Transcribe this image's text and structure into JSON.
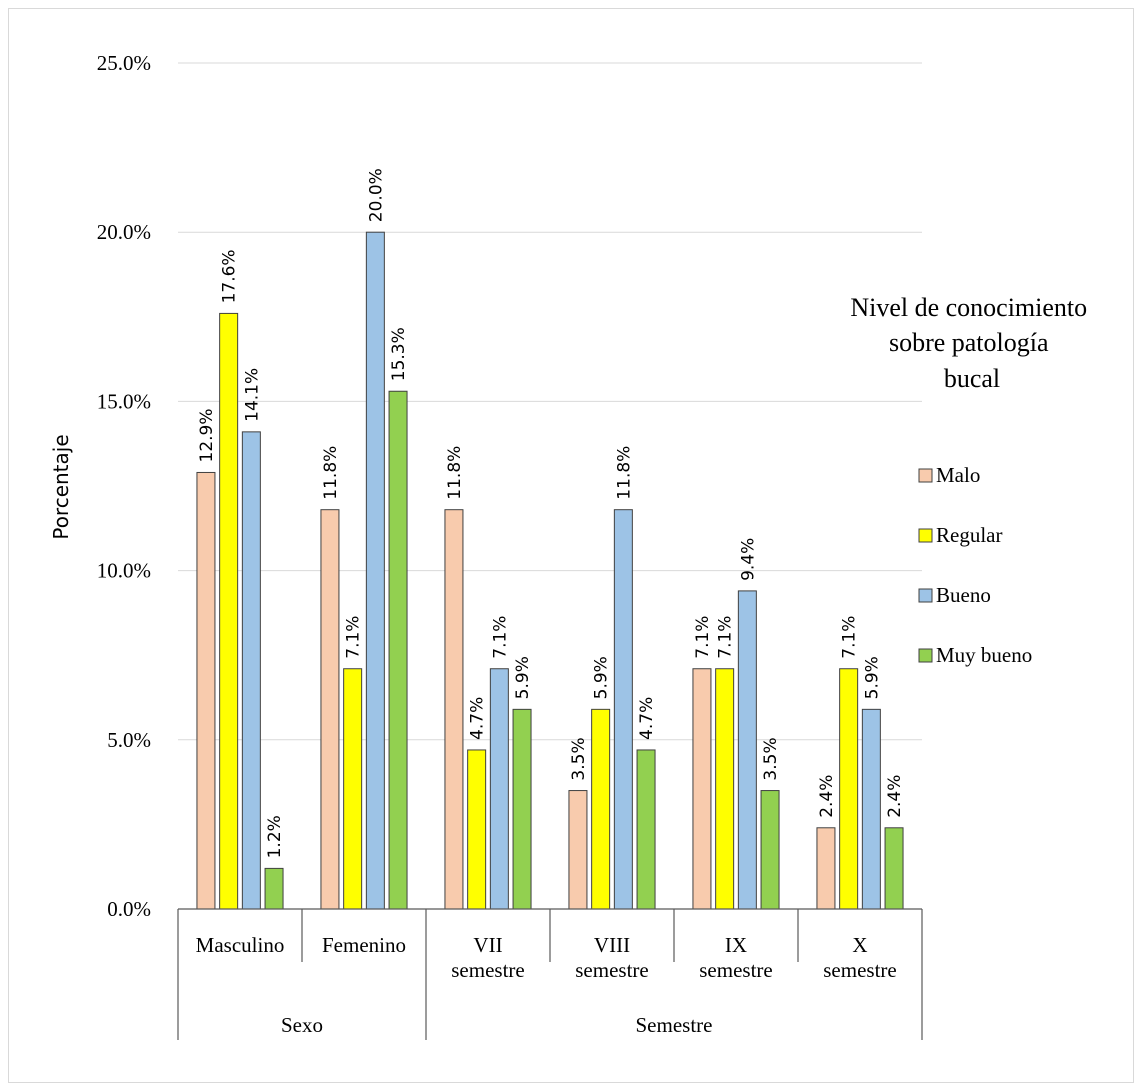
{
  "chart_data": {
    "type": "bar",
    "ylabel": "Porcentaje",
    "ylim": [
      0,
      25
    ],
    "yticks": [
      "0.0%",
      "5.0%",
      "10.0%",
      "15.0%",
      "20.0%",
      "25.0%"
    ],
    "yticks_values": [
      0,
      5,
      10,
      15,
      20,
      25
    ],
    "grid": true,
    "categories": [
      "Masculino",
      "Femenino",
      "VII semestre",
      "VIII semestre",
      "IX semestre",
      "X semestre"
    ],
    "category_lines": [
      [
        "Masculino"
      ],
      [
        "Femenino"
      ],
      [
        "VII",
        "semestre"
      ],
      [
        "VIII",
        "semestre"
      ],
      [
        "IX",
        "semestre"
      ],
      [
        "X",
        "semestre"
      ]
    ],
    "groups": [
      {
        "label": "Sexo",
        "span": [
          0,
          1
        ]
      },
      {
        "label": "Semestre",
        "span": [
          2,
          5
        ]
      }
    ],
    "legend_title_lines": [
      "Nivel de conocimiento",
      "sobre patología",
      "bucal"
    ],
    "legend_position": "right",
    "series": [
      {
        "name": "Malo",
        "color": "#F8CBAD",
        "values": [
          12.9,
          11.8,
          11.8,
          3.5,
          7.1,
          2.4
        ],
        "labels": [
          "12.9%",
          "11.8%",
          "11.8%",
          "3.5%",
          "7.1%",
          "2.4%"
        ]
      },
      {
        "name": "Regular",
        "color": "#FFFF00",
        "values": [
          17.6,
          7.1,
          4.7,
          5.9,
          7.1,
          7.1
        ],
        "labels": [
          "17.6%",
          "7.1%",
          "4.7%",
          "5.9%",
          "7.1%",
          "7.1%"
        ]
      },
      {
        "name": "Bueno",
        "color": "#9DC3E6",
        "values": [
          14.1,
          20.0,
          7.1,
          11.8,
          9.4,
          5.9
        ],
        "labels": [
          "14.1%",
          "20.0%",
          "7.1%",
          "11.8%",
          "9.4%",
          "5.9%"
        ]
      },
      {
        "name": "Muy bueno",
        "color": "#92D050",
        "values": [
          1.2,
          15.3,
          5.9,
          4.7,
          3.5,
          2.4
        ],
        "labels": [
          "1.2%",
          "15.3%",
          "5.9%",
          "4.7%",
          "3.5%",
          "2.4%"
        ]
      }
    ]
  }
}
